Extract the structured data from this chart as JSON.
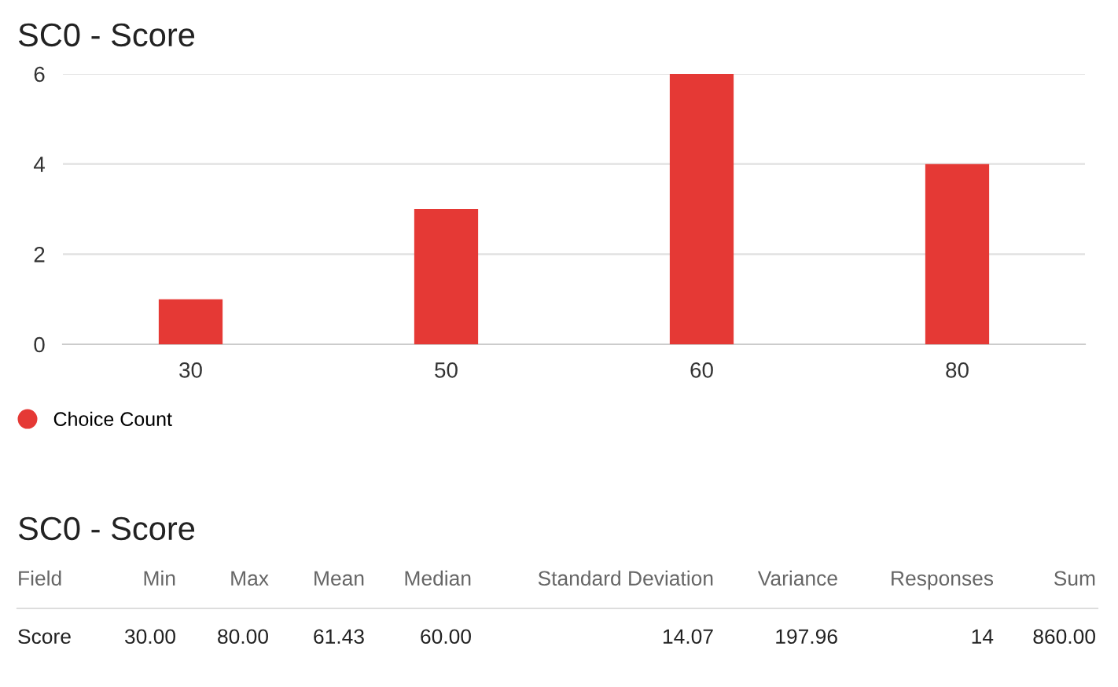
{
  "chart_data": [
    {
      "type": "bar",
      "title": "SC0 - Score",
      "categories": [
        "30",
        "50",
        "60",
        "80"
      ],
      "series": [
        {
          "name": "Choice Count",
          "color": "#e53935",
          "values": [
            1,
            3,
            6,
            4
          ]
        }
      ],
      "ylim": [
        0,
        6
      ],
      "yticks": [
        0,
        2,
        4,
        6
      ],
      "grid": "y",
      "legend": "bottom left",
      "marker": "circle"
    },
    {
      "type": "other",
      "title": "SC0 - Score",
      "annotations": [
        "Field",
        "Min",
        "Max",
        "Mean",
        "Median",
        "Standard Deviation",
        "Variance",
        "Responses",
        "Sum",
        "Score",
        "30.00",
        "80.00",
        "61.43",
        "60.00",
        "14.07",
        "197.96",
        "14",
        "860.00"
      ]
    }
  ]
}
